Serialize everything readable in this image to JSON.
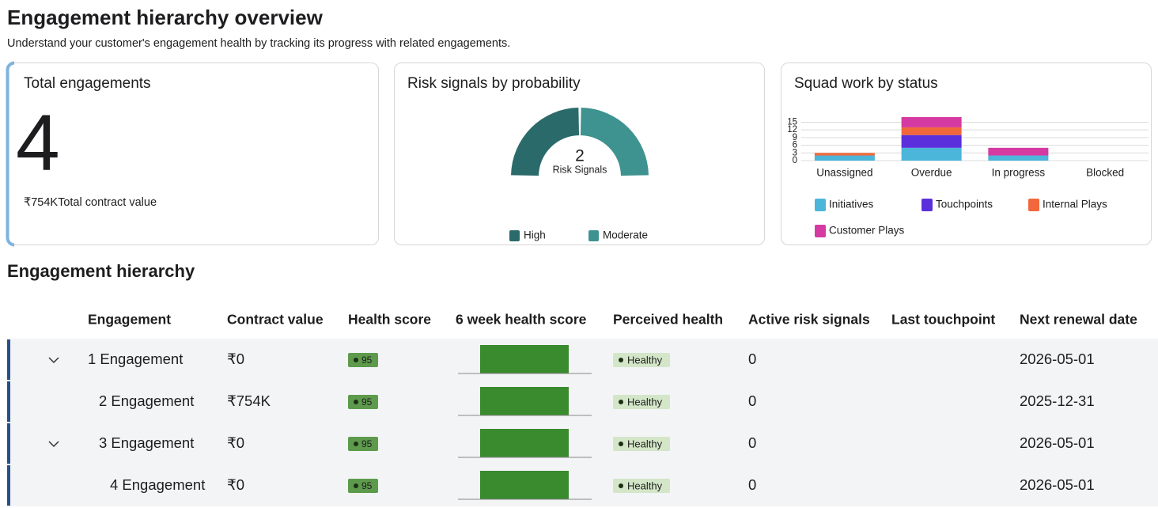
{
  "header": {
    "title": "Engagement hierarchy overview",
    "subtitle": "Understand your customer's engagement health by tracking its progress with related engagements."
  },
  "total_card": {
    "title": "Total engagements",
    "value": 4,
    "contract_value": "₹754K",
    "contract_label": "Total contract value"
  },
  "chart_data": [
    {
      "type": "half-donut",
      "title": "Risk signals by probability",
      "center_value": 2,
      "center_label": "Risk Signals",
      "categories": [
        "High",
        "Moderate"
      ],
      "values": [
        1,
        1
      ],
      "colors": [
        "#2b6a6a",
        "#3e9390"
      ]
    },
    {
      "type": "stacked-bar",
      "title": "Squad work by status",
      "categories": [
        "Unassigned",
        "Overdue",
        "In progress",
        "Blocked"
      ],
      "series": [
        {
          "name": "Initiatives",
          "color": "#4cb5da",
          "values": [
            2,
            5,
            2,
            0
          ]
        },
        {
          "name": "Touchpoints",
          "color": "#5b30dc",
          "values": [
            0,
            5,
            0,
            0
          ]
        },
        {
          "name": "Internal Plays",
          "color": "#f2683c",
          "values": [
            1,
            3,
            0,
            0
          ]
        },
        {
          "name": "Customer Plays",
          "color": "#d53aa2",
          "values": [
            0,
            4,
            3,
            0
          ]
        }
      ],
      "ylim": [
        0,
        17
      ],
      "yticks": [
        0,
        3,
        6,
        9,
        12,
        15
      ],
      "grid": true
    }
  ],
  "table": {
    "title": "Engagement hierarchy",
    "columns": [
      "Engagement",
      "Contract value",
      "Health score",
      "6 week health score",
      "Perceived health",
      "Active risk signals",
      "Last touchpoint",
      "Next renewal date"
    ],
    "rows": [
      {
        "engagement": "1 Engagement",
        "level": 0,
        "expanded": true,
        "contract_value": "₹0",
        "health_score": 95,
        "perceived_health": "Healthy",
        "active_risk_signals": 0,
        "next_renewal_date": "2026-05-01"
      },
      {
        "engagement": "2 Engagement",
        "level": 1,
        "expanded": false,
        "contract_value": "₹754K",
        "health_score": 95,
        "perceived_health": "Healthy",
        "active_risk_signals": 0,
        "next_renewal_date": "2025-12-31"
      },
      {
        "engagement": "3 Engagement",
        "level": 1,
        "expanded": true,
        "contract_value": "₹0",
        "health_score": 95,
        "perceived_health": "Healthy",
        "active_risk_signals": 0,
        "next_renewal_date": "2026-05-01"
      },
      {
        "engagement": "4 Engagement",
        "level": 2,
        "expanded": false,
        "contract_value": "₹0",
        "health_score": 95,
        "perceived_health": "Healthy",
        "active_risk_signals": 0,
        "next_renewal_date": "2026-05-01"
      }
    ]
  }
}
